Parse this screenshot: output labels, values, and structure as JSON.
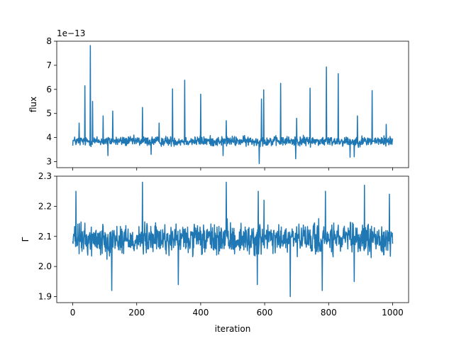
{
  "chart_data": [
    {
      "type": "line",
      "title": "",
      "xlabel": "",
      "ylabel": "flux",
      "offset_label": "1e−13",
      "xlim": [
        -50,
        1050
      ],
      "ylim": [
        2.75,
        8.0
      ],
      "xticks": [
        0,
        200,
        400,
        600,
        800,
        1000
      ],
      "yticks": [
        3,
        4,
        5,
        6,
        7,
        8
      ],
      "ytick_labels": [
        "3",
        "4",
        "5",
        "6",
        "7",
        "8"
      ],
      "grid": false,
      "series_color": "#1f77b4",
      "baseline": 3.85,
      "noise_amplitude": 0.3,
      "peaks": [
        {
          "x": 20,
          "y": 4.6
        },
        {
          "x": 38,
          "y": 6.15
        },
        {
          "x": 55,
          "y": 7.82
        },
        {
          "x": 62,
          "y": 5.5
        },
        {
          "x": 95,
          "y": 4.9
        },
        {
          "x": 110,
          "y": 5.4
        },
        {
          "x": 125,
          "y": 5.1
        },
        {
          "x": 218,
          "y": 5.25
        },
        {
          "x": 270,
          "y": 4.6
        },
        {
          "x": 312,
          "y": 6.02
        },
        {
          "x": 350,
          "y": 6.38
        },
        {
          "x": 400,
          "y": 5.8
        },
        {
          "x": 480,
          "y": 4.7
        },
        {
          "x": 590,
          "y": 5.6
        },
        {
          "x": 597,
          "y": 5.98
        },
        {
          "x": 650,
          "y": 6.25
        },
        {
          "x": 700,
          "y": 4.8
        },
        {
          "x": 742,
          "y": 6.05
        },
        {
          "x": 793,
          "y": 6.93
        },
        {
          "x": 830,
          "y": 6.65
        },
        {
          "x": 890,
          "y": 4.9
        },
        {
          "x": 936,
          "y": 5.95
        },
        {
          "x": 980,
          "y": 4.55
        }
      ],
      "troughs": [
        {
          "x": 110,
          "y": 3.25
        },
        {
          "x": 245,
          "y": 3.3
        },
        {
          "x": 470,
          "y": 3.25
        },
        {
          "x": 583,
          "y": 2.92
        },
        {
          "x": 697,
          "y": 3.12
        },
        {
          "x": 867,
          "y": 3.18
        },
        {
          "x": 880,
          "y": 3.2
        }
      ]
    },
    {
      "type": "line",
      "title": "",
      "xlabel": "iteration",
      "ylabel": "Γ",
      "xlim": [
        -50,
        1050
      ],
      "ylim": [
        1.88,
        2.3
      ],
      "xticks": [
        0,
        200,
        400,
        600,
        800,
        1000
      ],
      "xtick_labels": [
        "0",
        "200",
        "400",
        "600",
        "800",
        "1000"
      ],
      "yticks": [
        1.9,
        2.0,
        2.1,
        2.2,
        2.3
      ],
      "ytick_labels": [
        "1.9",
        "2.0",
        "2.1",
        "2.2",
        "2.3"
      ],
      "grid": false,
      "series_color": "#1f77b4",
      "baseline": 2.09,
      "noise_amplitude": 0.075,
      "peaks": [
        {
          "x": 10,
          "y": 2.25
        },
        {
          "x": 218,
          "y": 2.28
        },
        {
          "x": 480,
          "y": 2.28
        },
        {
          "x": 580,
          "y": 2.25
        },
        {
          "x": 598,
          "y": 2.22
        },
        {
          "x": 790,
          "y": 2.25
        },
        {
          "x": 912,
          "y": 2.27
        },
        {
          "x": 990,
          "y": 2.24
        }
      ],
      "troughs": [
        {
          "x": 122,
          "y": 1.92
        },
        {
          "x": 330,
          "y": 1.94
        },
        {
          "x": 577,
          "y": 1.94
        },
        {
          "x": 680,
          "y": 1.9
        },
        {
          "x": 780,
          "y": 1.92
        },
        {
          "x": 880,
          "y": 1.95
        }
      ]
    }
  ]
}
